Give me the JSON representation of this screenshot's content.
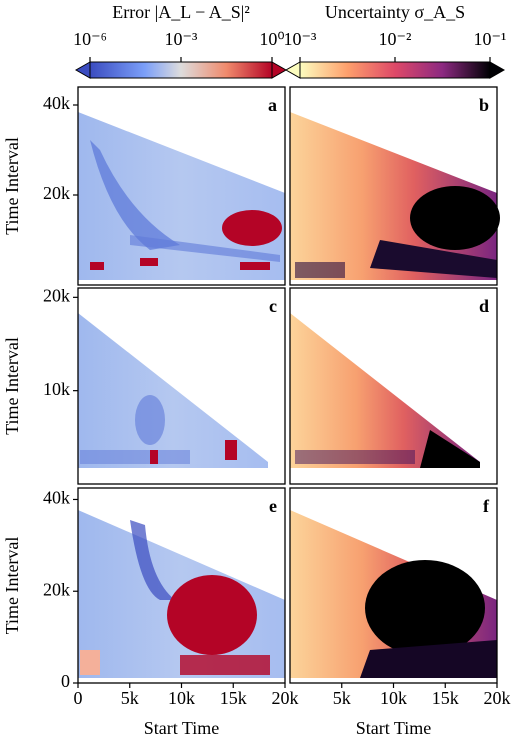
{
  "colorbars": [
    {
      "label": "Error |A_L − A_S|²",
      "scale": "log",
      "lim": [
        1e-06,
        1
      ],
      "ticks": [
        {
          "value": 1e-06,
          "label": "10⁻⁶"
        },
        {
          "value": 0.001,
          "label": "10⁻³"
        },
        {
          "value": 1,
          "label": "10⁰"
        }
      ]
    },
    {
      "label": "Uncertainty σ_A_S",
      "scale": "log",
      "lim": [
        0.001,
        0.1
      ],
      "ticks": [
        {
          "value": 0.001,
          "label": "10⁻³"
        },
        {
          "value": 0.01,
          "label": "10⁻²"
        },
        {
          "value": 0.1,
          "label": "10⁻¹"
        }
      ]
    }
  ],
  "chart_data": [
    {
      "type": "heatmap",
      "panel_label": "a",
      "ylabel": "Time Interval",
      "ylim": [
        0,
        44000
      ],
      "yticks": [
        {
          "value": 20000,
          "label": "20k"
        },
        {
          "value": 40000,
          "label": "40k"
        }
      ]
    },
    {
      "type": "heatmap",
      "panel_label": "b"
    },
    {
      "type": "heatmap",
      "panel_label": "c",
      "ylabel": "Time Interval",
      "ylim": [
        0,
        21000
      ],
      "yticks": [
        {
          "value": 10000,
          "label": "10k"
        },
        {
          "value": 20000,
          "label": "20k"
        }
      ]
    },
    {
      "type": "heatmap",
      "panel_label": "d"
    },
    {
      "type": "heatmap",
      "panel_label": "e",
      "ylabel": "Time Interval",
      "xlabel": "Start Time",
      "ylim": [
        0,
        42500
      ],
      "xlim": [
        0,
        20000
      ],
      "yticks": [
        0,
        {
          "value": 20000,
          "label": "20k"
        },
        {
          "value": 40000,
          "label": "40k"
        }
      ],
      "xticks": [
        0,
        {
          "value": 5000,
          "label": "5k"
        },
        {
          "value": 10000,
          "label": "10k"
        },
        {
          "value": 15000,
          "label": "15k"
        },
        {
          "value": 20000,
          "label": "20k"
        }
      ]
    },
    {
      "type": "heatmap",
      "panel_label": "f",
      "xlabel": "Start Time",
      "xlim": [
        0,
        20000
      ],
      "xticks": [
        {
          "value": 5000,
          "label": "5k"
        },
        {
          "value": 10000,
          "label": "10k"
        },
        {
          "value": 15000,
          "label": "15k"
        },
        {
          "value": 20000,
          "label": "20k"
        }
      ]
    }
  ]
}
